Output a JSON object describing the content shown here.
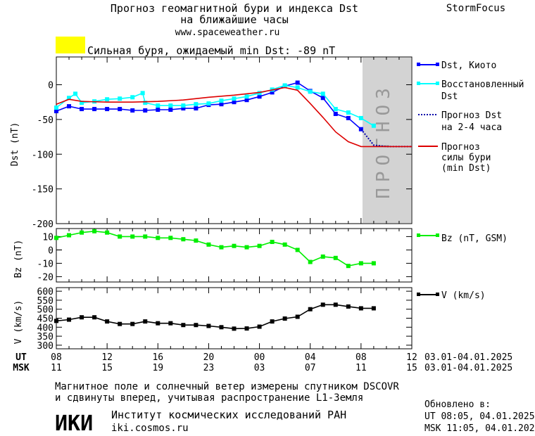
{
  "header": {
    "title_line1": "Прогноз геомагнитной бури и индекса Dst",
    "title_line2": "на ближайшие часы",
    "site": "www.spaceweather.ru",
    "brand": "StormFocus"
  },
  "alert": {
    "color": "#ffff00",
    "text": "Сильная буря, ожидаемый min Dst: -89 nT"
  },
  "forecast_label": "ПРОГНОЗ",
  "time_axis": {
    "ut_label": "UT",
    "msk_label": "MSK",
    "ut_ticks": [
      "08",
      "12",
      "16",
      "20",
      "00",
      "04",
      "08",
      "12"
    ],
    "msk_ticks": [
      "11",
      "15",
      "19",
      "23",
      "03",
      "07",
      "11",
      "15"
    ],
    "date_range_ut": "03.01-04.01.2025",
    "date_range_msk": "03.01-04.01.2025"
  },
  "footer": {
    "note_line1": "Магнитное поле и солнечный ветер измерены спутником DSCOVR",
    "note_line2": "и сдвинуты вперед, учитывая распространение L1-Земля",
    "logo": "ИКИ",
    "institute": "Институт космических исследований РАН",
    "institute_site": "iki.cosmos.ru",
    "updated_label": "Обновлено в:",
    "updated_ut": "UT   08:05, 04.01.2025",
    "updated_msk": "MSK 11:05, 04.01.2025"
  },
  "chart_data": [
    {
      "type": "line",
      "ylabel": "Dst (nT)",
      "ylim": [
        -200,
        40
      ],
      "yticks": [
        0,
        -50,
        -100,
        -150,
        -200
      ],
      "xlim_hours": [
        0,
        28
      ],
      "forecast_region_hours": [
        24,
        28
      ],
      "series": [
        {
          "name": "Dst, Киото",
          "color": "#0000ff",
          "marker": "square",
          "x": [
            0,
            1,
            2,
            3,
            4,
            5,
            6,
            7,
            8,
            9,
            10,
            11,
            12,
            13,
            14,
            15,
            16,
            17,
            18,
            19,
            20,
            21,
            22,
            23,
            24
          ],
          "y": [
            -38,
            -31,
            -35,
            -35,
            -35,
            -35,
            -37,
            -37,
            -36,
            -36,
            -34,
            -34,
            -29,
            -28,
            -25,
            -22,
            -17,
            -11,
            -2,
            3,
            -9,
            -19,
            -42,
            -48,
            -64
          ]
        },
        {
          "name": "Восстановленный Dst",
          "color": "#00ffff",
          "marker": "square",
          "x": [
            0,
            1,
            1.5,
            2,
            3,
            4,
            5,
            6,
            6.8,
            7,
            8,
            9,
            10,
            11,
            12,
            13,
            14,
            15,
            16,
            17,
            18,
            19,
            20,
            21,
            22,
            23,
            24,
            25
          ],
          "y": [
            -33,
            -19,
            -13,
            -26,
            -24,
            -21,
            -20,
            -18,
            -12,
            -26,
            -30,
            -30,
            -30,
            -28,
            -27,
            -23,
            -20,
            -17,
            -12,
            -7,
            -1,
            -4,
            -10,
            -13,
            -35,
            -40,
            -48,
            -59
          ]
        },
        {
          "name": "Прогноз Dst на 2-4 часа",
          "color": "#0000aa",
          "dash": true,
          "x": [
            24,
            25,
            26,
            27,
            28
          ],
          "y": [
            -64,
            -87,
            -89,
            -89,
            -89
          ]
        },
        {
          "name": "Прогноз силы бури (min Dst)",
          "color": "#dd0000",
          "x": [
            0,
            1,
            2,
            4,
            6,
            8,
            10,
            12,
            14,
            16,
            18,
            19,
            20,
            21,
            22,
            23,
            24,
            25,
            26,
            27,
            28
          ],
          "y": [
            -28,
            -21,
            -24,
            -25,
            -25,
            -24,
            -22,
            -18,
            -15,
            -11,
            -4,
            -8,
            -27,
            -47,
            -68,
            -82,
            -89,
            -89,
            -89,
            -89,
            -89
          ]
        }
      ],
      "legend": [
        "Dst, Киото",
        "Восстановленный",
        "Dst",
        "Прогноз Dst",
        "на 2-4 часа",
        "Прогноз",
        "силы бури",
        "(min Dst)"
      ]
    },
    {
      "type": "line",
      "ylabel": "Bz (nT)",
      "ylim": [
        -24,
        16
      ],
      "yticks": [
        10,
        0,
        -10,
        -20
      ],
      "series": [
        {
          "name": "Bz (nT, GSM)",
          "color": "#00ee00",
          "marker": "square",
          "x": [
            0,
            1,
            2,
            3,
            4,
            5,
            6,
            7,
            8,
            9,
            10,
            11,
            12,
            13,
            14,
            15,
            16,
            17,
            18,
            19,
            20,
            21,
            22,
            23,
            24,
            25
          ],
          "y": [
            9,
            11,
            13,
            14,
            13,
            10,
            10,
            10,
            9,
            9,
            8,
            7,
            4,
            2,
            3,
            2,
            3,
            6,
            4,
            0,
            -9,
            -5,
            -6,
            -12,
            -10,
            -10
          ]
        }
      ],
      "legend": [
        "Bz (nT, GSM)"
      ]
    },
    {
      "type": "line",
      "ylabel": "V (km/s)",
      "ylim": [
        280,
        620
      ],
      "yticks": [
        300,
        350,
        400,
        450,
        500,
        550,
        600
      ],
      "series": [
        {
          "name": "V (km/s)",
          "color": "#000000",
          "marker": "square",
          "x": [
            0,
            1,
            2,
            3,
            4,
            5,
            6,
            7,
            8,
            9,
            10,
            11,
            12,
            13,
            14,
            15,
            16,
            17,
            18,
            19,
            20,
            21,
            22,
            23,
            24,
            25
          ],
          "y": [
            435,
            442,
            455,
            455,
            432,
            418,
            418,
            432,
            422,
            422,
            412,
            412,
            407,
            400,
            392,
            393,
            403,
            432,
            448,
            458,
            500,
            525,
            525,
            515,
            505,
            505
          ]
        }
      ],
      "legend": [
        "V (km/s)"
      ]
    }
  ]
}
